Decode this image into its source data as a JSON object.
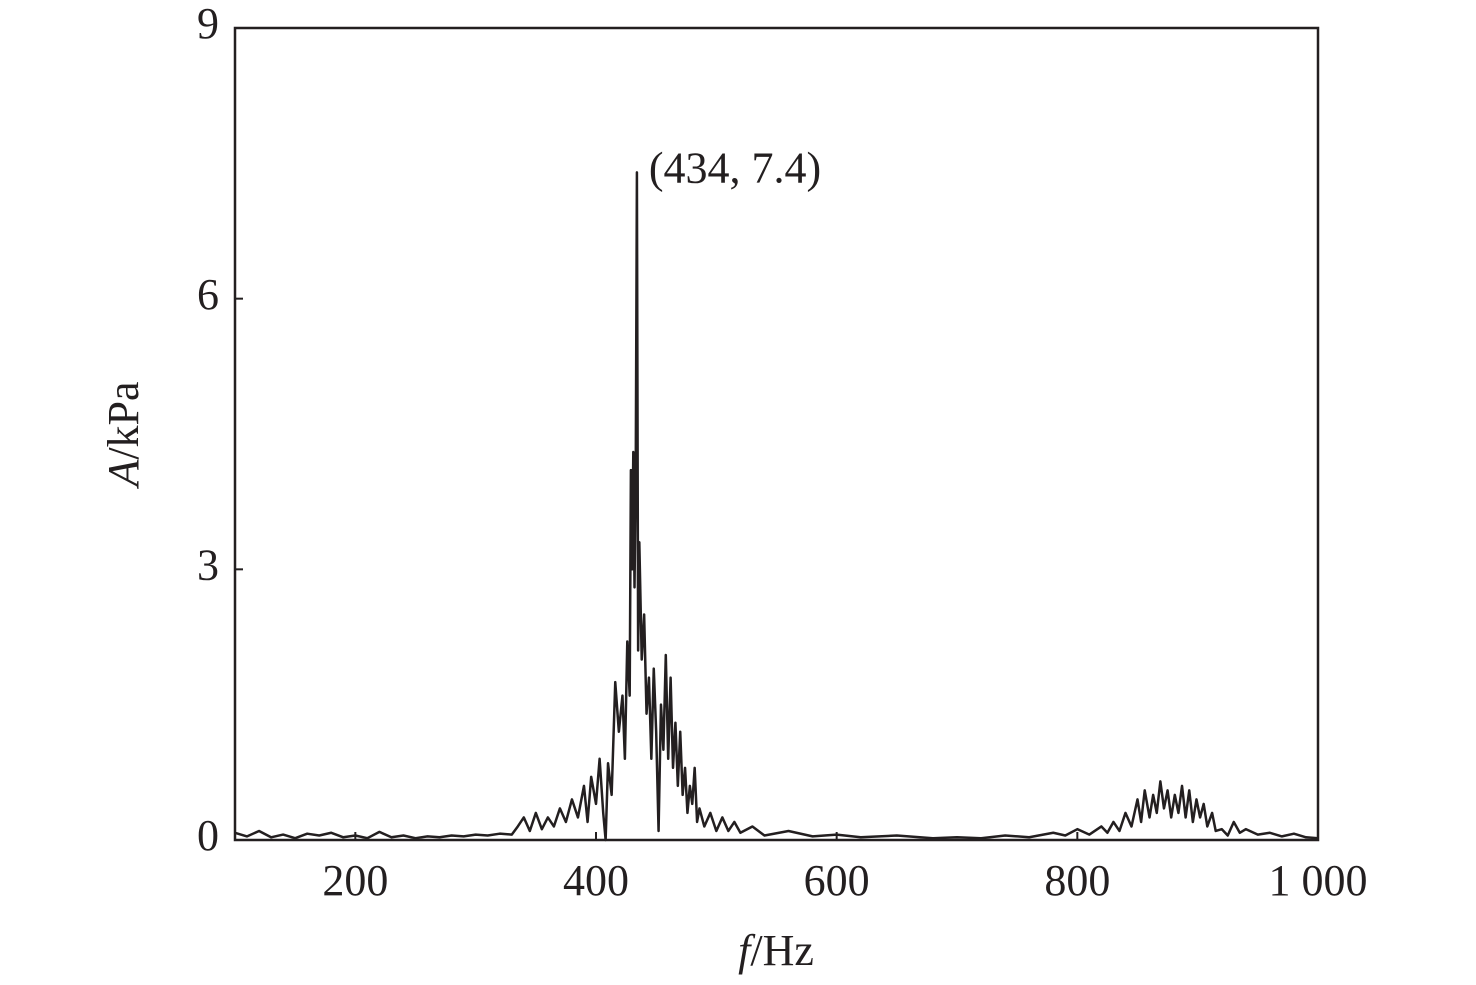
{
  "chart_data": {
    "type": "line",
    "x_label": "f/Hz",
    "y_label": "A/kPa",
    "annotation": {
      "text": "(434, 7.4)",
      "x": 434,
      "y": 7.4
    },
    "color": "#231f20",
    "xlim": [
      100,
      1000
    ],
    "xticks": [
      200,
      400,
      600,
      800,
      {
        "value": 1000,
        "label": "1 000"
      }
    ],
    "ylim": [
      0,
      9
    ],
    "yticks": [
      0,
      3,
      6,
      9
    ],
    "x": [
      100,
      110,
      120,
      130,
      140,
      150,
      160,
      170,
      180,
      190,
      200,
      210,
      220,
      230,
      240,
      250,
      260,
      270,
      280,
      290,
      300,
      310,
      320,
      330,
      335,
      340,
      345,
      350,
      355,
      360,
      365,
      370,
      375,
      380,
      385,
      390,
      393,
      396,
      400,
      403,
      406,
      408,
      410,
      413,
      416,
      419,
      422,
      424,
      426,
      428,
      429,
      430,
      431,
      432,
      433,
      434,
      435,
      436,
      438,
      440,
      442,
      444,
      446,
      448,
      450,
      452,
      454,
      456,
      458,
      460,
      462,
      464,
      466,
      468,
      470,
      472,
      474,
      476,
      478,
      480,
      482,
      484,
      486,
      490,
      495,
      500,
      505,
      510,
      515,
      520,
      530,
      540,
      560,
      580,
      600,
      620,
      650,
      680,
      700,
      720,
      740,
      760,
      780,
      790,
      800,
      810,
      820,
      825,
      830,
      835,
      840,
      845,
      850,
      853,
      856,
      860,
      863,
      866,
      869,
      872,
      875,
      878,
      881,
      884,
      887,
      890,
      893,
      896,
      899,
      902,
      905,
      908,
      912,
      915,
      920,
      925,
      930,
      935,
      940,
      950,
      960,
      970,
      980,
      990,
      1000
    ],
    "values": [
      0.08,
      0.04,
      0.1,
      0.03,
      0.06,
      0.02,
      0.07,
      0.05,
      0.08,
      0.03,
      0.05,
      0.02,
      0.09,
      0.03,
      0.05,
      0.02,
      0.04,
      0.03,
      0.05,
      0.04,
      0.06,
      0.05,
      0.07,
      0.06,
      0.15,
      0.25,
      0.1,
      0.3,
      0.12,
      0.25,
      0.15,
      0.35,
      0.2,
      0.45,
      0.25,
      0.6,
      0.2,
      0.7,
      0.4,
      0.9,
      0.3,
      0,
      0.85,
      0.5,
      1.75,
      1.2,
      1.6,
      0.9,
      2.2,
      1.6,
      4.1,
      3.0,
      4.3,
      2.8,
      4.0,
      7.4,
      2.1,
      3.3,
      2.0,
      2.5,
      1.4,
      1.8,
      0.9,
      1.9,
      1.2,
      0.1,
      1.5,
      1.0,
      2.05,
      0.9,
      1.8,
      0.8,
      1.3,
      0.6,
      1.2,
      0.5,
      0.8,
      0.3,
      0.6,
      0.4,
      0.8,
      0.2,
      0.35,
      0.15,
      0.3,
      0.1,
      0.25,
      0.1,
      0.2,
      0.08,
      0.15,
      0.05,
      0.1,
      0.04,
      0.06,
      0.03,
      0.05,
      0.02,
      0.03,
      0.02,
      0.05,
      0.03,
      0.08,
      0.05,
      0.12,
      0.06,
      0.15,
      0.08,
      0.2,
      0.1,
      0.3,
      0.15,
      0.45,
      0.2,
      0.55,
      0.25,
      0.5,
      0.3,
      0.65,
      0.35,
      0.55,
      0.25,
      0.5,
      0.3,
      0.6,
      0.25,
      0.55,
      0.2,
      0.45,
      0.25,
      0.4,
      0.15,
      0.3,
      0.1,
      0.12,
      0.05,
      0.2,
      0.08,
      0.12,
      0.06,
      0.08,
      0.04,
      0.07,
      0.03,
      0.02
    ]
  }
}
